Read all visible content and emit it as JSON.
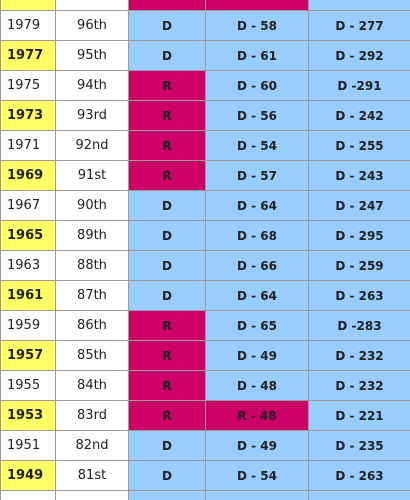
{
  "table": {
    "rows": [
      [
        "1979",
        "96th",
        "D",
        "D - 58",
        "D - 277"
      ],
      [
        "1977",
        "95th",
        "D",
        "D - 61",
        "D - 292"
      ],
      [
        "1975",
        "94th",
        "R",
        "D - 60",
        "D -291"
      ],
      [
        "1973",
        "93rd",
        "R",
        "D - 56",
        "D - 242"
      ],
      [
        "1971",
        "92nd",
        "R",
        "D - 54",
        "D - 255"
      ],
      [
        "1969",
        "91st",
        "R",
        "D - 57",
        "D - 243"
      ],
      [
        "1967",
        "90th",
        "D",
        "D - 64",
        "D - 247"
      ],
      [
        "1965",
        "89th",
        "D",
        "D - 68",
        "D - 295"
      ],
      [
        "1963",
        "88th",
        "D",
        "D - 66",
        "D - 259"
      ],
      [
        "1961",
        "87th",
        "D",
        "D - 64",
        "D - 263"
      ],
      [
        "1959",
        "86th",
        "R",
        "D - 65",
        "D -283"
      ],
      [
        "1957",
        "85th",
        "R",
        "D - 49",
        "D - 232"
      ],
      [
        "1955",
        "84th",
        "R",
        "D - 48",
        "D - 232"
      ],
      [
        "1953",
        "83rd",
        "R",
        "R - 48",
        "D - 221"
      ],
      [
        "1951",
        "82nd",
        "D",
        "D - 49",
        "D - 235"
      ],
      [
        "1949",
        "81st",
        "D",
        "D - 54",
        "D - 263"
      ]
    ]
  }
}
